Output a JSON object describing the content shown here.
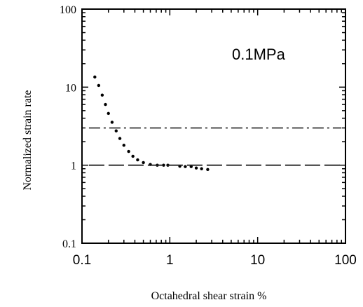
{
  "chart_data": {
    "type": "scatter",
    "title": "",
    "annotation": "0.1MPa",
    "xlabel": "Octahedral shear strain %",
    "ylabel": "Normalized strain rate",
    "xscale": "log",
    "yscale": "log",
    "xlim": [
      0.1,
      100
    ],
    "ylim": [
      0.1,
      100
    ],
    "xticks": [
      0.1,
      1,
      10,
      100
    ],
    "xtick_labels": [
      "0.1",
      "1",
      "10",
      "100"
    ],
    "yticks": [
      0.1,
      1,
      10,
      100
    ],
    "ytick_labels": [
      "0.1",
      "1",
      "10",
      "100"
    ],
    "grid": false,
    "series": [
      {
        "style": "dotted",
        "x": [
          0.14,
          0.155,
          0.17,
          0.185,
          0.2,
          0.22,
          0.245,
          0.27,
          0.3,
          0.34,
          0.38,
          0.43,
          0.5,
          0.6,
          0.72,
          0.85,
          0.95,
          1.3,
          1.5,
          1.75,
          2.0,
          2.3,
          2.7
        ],
        "y": [
          13.5,
          10.5,
          7.9,
          6.0,
          4.6,
          3.55,
          2.75,
          2.2,
          1.8,
          1.5,
          1.3,
          1.17,
          1.08,
          1.02,
          1.0,
          1.0,
          1.0,
          0.97,
          0.96,
          0.96,
          0.92,
          0.9,
          0.88
        ]
      },
      {
        "style": "dash-dot",
        "x": [
          0.12,
          90
        ],
        "y": [
          3.0,
          3.0
        ]
      },
      {
        "style": "dashed",
        "x": [
          0.12,
          90
        ],
        "y": [
          1.0,
          1.0
        ]
      }
    ]
  }
}
